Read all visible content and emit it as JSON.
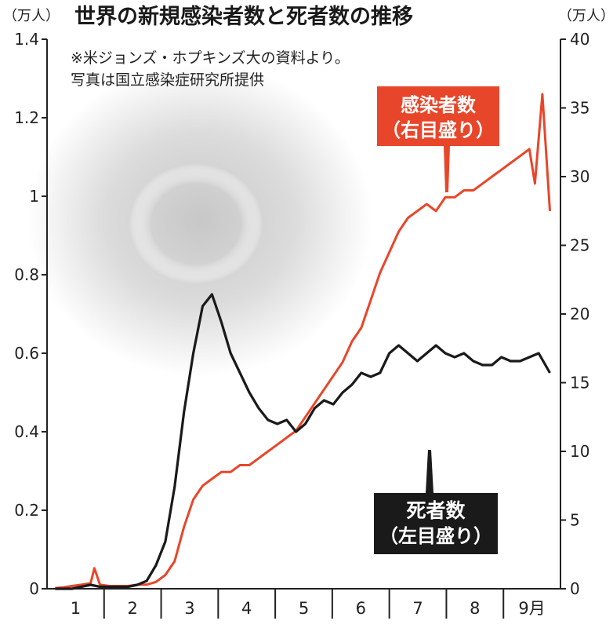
{
  "chart_data": {
    "type": "line",
    "title": "世界の新規感染者数と死者数の推移",
    "notes": [
      "※米ジョンズ・ホプキンズ大の資料より。",
      "写真は国立感染症研究所提供"
    ],
    "left_unit": "（万人）",
    "right_unit": "（万人）",
    "left_ylim": [
      0,
      1.4
    ],
    "right_ylim": [
      0,
      40
    ],
    "left_ticks": [
      "0",
      "0.2",
      "0.4",
      "0.6",
      "0.8",
      "1",
      "1.2",
      "1.4"
    ],
    "right_ticks": [
      "0",
      "5",
      "10",
      "15",
      "20",
      "25",
      "30",
      "35",
      "40"
    ],
    "months": [
      "1",
      "2",
      "3",
      "4",
      "5",
      "6",
      "7",
      "8",
      "9月"
    ],
    "grid": false,
    "colors": {
      "cases": "#e8462a",
      "deaths": "#1a1a1a",
      "background_virus": "#9a9a9a"
    },
    "series": [
      {
        "name": "感染者数",
        "label_line1": "感染者数",
        "label_line2": "（右目盛り）",
        "axis": "right",
        "color": "#e8462a",
        "x": [
          1,
          5,
          10,
          15,
          20,
          22,
          25,
          30,
          35,
          40,
          45,
          50,
          55,
          60,
          65,
          70,
          75,
          80,
          85,
          90,
          95,
          100,
          105,
          110,
          115,
          120,
          125,
          130,
          135,
          140,
          145,
          150,
          155,
          160,
          165,
          170,
          175,
          180,
          185,
          190,
          195,
          200,
          205,
          210,
          215,
          220,
          225,
          230,
          235,
          240,
          245,
          250,
          255,
          258,
          262,
          266
        ],
        "values": [
          0.05,
          0.1,
          0.2,
          0.3,
          0.4,
          1.5,
          0.3,
          0.2,
          0.2,
          0.2,
          0.3,
          0.3,
          0.5,
          1.0,
          2.0,
          4.5,
          6.5,
          7.5,
          8.0,
          8.5,
          8.5,
          9.0,
          9.0,
          9.5,
          10.0,
          10.5,
          11.0,
          11.5,
          12.5,
          13.5,
          14.5,
          15.5,
          16.5,
          18.0,
          19.0,
          21.0,
          23.0,
          24.5,
          26.0,
          27.0,
          27.5,
          28.0,
          27.5,
          28.5,
          28.5,
          29.0,
          29.0,
          29.5,
          30.0,
          30.5,
          31.0,
          31.5,
          32.0,
          29.5,
          36.0,
          27.5
        ]
      },
      {
        "name": "死者数",
        "label_line1": "死者数",
        "label_line2": "（左目盛り）",
        "axis": "left",
        "color": "#1a1a1a",
        "x": [
          1,
          5,
          10,
          15,
          20,
          25,
          30,
          35,
          40,
          45,
          50,
          55,
          60,
          65,
          70,
          75,
          80,
          85,
          90,
          95,
          100,
          105,
          110,
          115,
          120,
          125,
          130,
          135,
          140,
          145,
          150,
          155,
          160,
          165,
          170,
          175,
          180,
          185,
          190,
          195,
          200,
          205,
          210,
          215,
          220,
          225,
          230,
          235,
          240,
          245,
          250,
          255,
          260,
          266
        ],
        "values": [
          0.0,
          0.0,
          0.0,
          0.005,
          0.01,
          0.005,
          0.005,
          0.005,
          0.005,
          0.01,
          0.02,
          0.06,
          0.12,
          0.26,
          0.45,
          0.6,
          0.72,
          0.75,
          0.68,
          0.6,
          0.55,
          0.5,
          0.46,
          0.43,
          0.42,
          0.43,
          0.4,
          0.42,
          0.46,
          0.48,
          0.47,
          0.5,
          0.52,
          0.55,
          0.54,
          0.55,
          0.6,
          0.62,
          0.6,
          0.58,
          0.6,
          0.62,
          0.6,
          0.59,
          0.6,
          0.58,
          0.57,
          0.57,
          0.59,
          0.58,
          0.58,
          0.59,
          0.6,
          0.55
        ]
      }
    ]
  }
}
